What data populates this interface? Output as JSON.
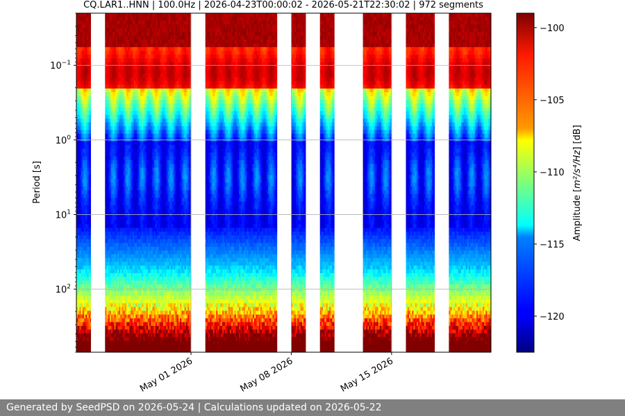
{
  "chart_data": {
    "type": "heatmap",
    "title": "CQ.LAR1..HNN | 100.0Hz | 2026-04-23T00:00:02 - 2026-05-21T22:30:02 | 972 segments",
    "xlabel": "",
    "ylabel": "Period [s]",
    "y_scale": "log",
    "y_inverted": true,
    "y_range": [
      0.02,
      700
    ],
    "y_ticks": [
      {
        "value": 0.1,
        "base": "10",
        "exp": "−1"
      },
      {
        "value": 1,
        "base": "10",
        "exp": "0"
      },
      {
        "value": 10,
        "base": "10",
        "exp": "1"
      },
      {
        "value": 100,
        "base": "10",
        "exp": "2"
      }
    ],
    "x_range": [
      "2026-04-23T00:00:02",
      "2026-05-21T22:30:02"
    ],
    "x_ticks": [
      {
        "date": "2026-05-01",
        "label": "May 01 2026"
      },
      {
        "date": "2026-05-08",
        "label": "May 08 2026"
      },
      {
        "date": "2026-05-15",
        "label": "May 15 2026"
      }
    ],
    "segments": 972,
    "sampling_rate": "100.0Hz",
    "data_days": [
      [
        "2026-04-23",
        "2026-04-24"
      ],
      [
        "2026-04-25",
        "2026-05-01"
      ],
      [
        "2026-05-02",
        "2026-05-07"
      ],
      [
        "2026-05-08",
        "2026-05-09"
      ],
      [
        "2026-05-10",
        "2026-05-11"
      ],
      [
        "2026-05-13",
        "2026-05-15"
      ],
      [
        "2026-05-16",
        "2026-05-18"
      ],
      [
        "2026-05-19",
        "2026-05-21T22:30:02"
      ]
    ],
    "colorbar": {
      "label": "Amplitude",
      "unit_latex": "m²/s⁴/Hz",
      "unit_suffix": "[dB]",
      "range": [
        -122.5,
        -99
      ],
      "ticks": [
        -100,
        -105,
        -110,
        -115,
        -120
      ],
      "colormap": "jet"
    },
    "grid": true
  },
  "footer": {
    "text": "Generated by SeedPSD on 2026-05-24 | Calculations updated on 2026-05-22"
  },
  "colors": {
    "footer_bg": "#808080",
    "footer_text": "#ffffff",
    "grid": "#b0b0b0"
  }
}
